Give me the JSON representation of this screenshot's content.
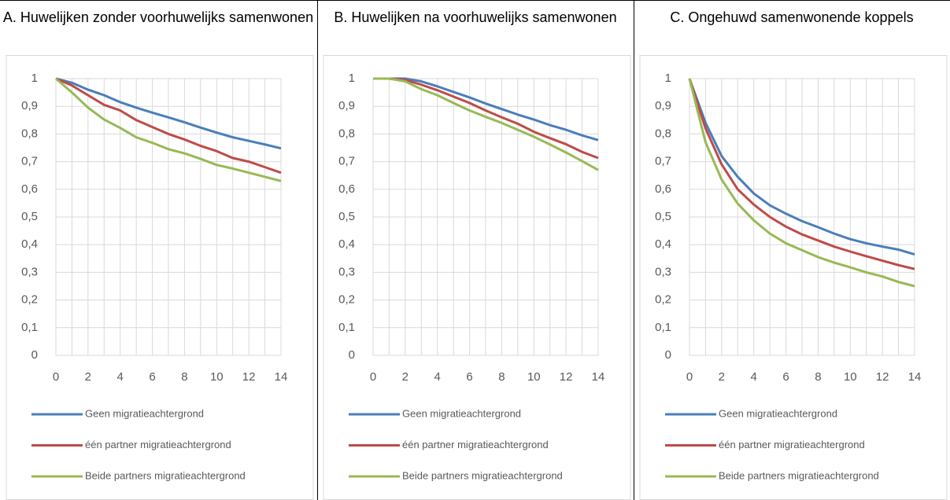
{
  "chart_data": [
    {
      "type": "line",
      "title": "A. Huwelijken zonder voorhuwelijks samenwonen",
      "categories": [
        "0",
        null,
        "2",
        null,
        "4",
        null,
        "6",
        null,
        "8",
        null,
        "10",
        null,
        "12",
        null,
        "14"
      ],
      "ylim": [
        0,
        1
      ],
      "yticks": [
        0,
        {
          "value": 0.1,
          "label": "0,1"
        },
        {
          "value": 0.2,
          "label": "0,2"
        },
        {
          "value": 0.3,
          "label": "0,3"
        },
        {
          "value": 0.4,
          "label": "0,4"
        },
        {
          "value": 0.5,
          "label": "0,5"
        },
        {
          "value": 0.6,
          "label": "0,6"
        },
        {
          "value": 0.7,
          "label": "0,7"
        },
        {
          "value": 0.8,
          "label": "0,8"
        },
        {
          "value": 0.9,
          "label": "0,9"
        },
        1
      ],
      "grid": true,
      "series": [
        {
          "name": "Geen migratieachtergrond",
          "color": "#4a7ebb",
          "values": [
            1,
            0.985,
            0.96,
            0.94,
            0.915,
            0.895,
            0.877,
            0.86,
            0.842,
            0.823,
            0.805,
            0.788,
            0.775,
            0.762,
            0.748
          ]
        },
        {
          "name": "één partner migratieachtergrond",
          "color": "#be4b48",
          "values": [
            1,
            0.975,
            0.94,
            0.905,
            0.885,
            0.85,
            0.825,
            0.8,
            0.78,
            0.757,
            0.738,
            0.713,
            0.7,
            0.68,
            0.66
          ]
        },
        {
          "name": "Beide partners migratieachtergrond",
          "color": "#98b954",
          "values": [
            1,
            0.95,
            0.895,
            0.852,
            0.822,
            0.788,
            0.768,
            0.745,
            0.73,
            0.71,
            0.688,
            0.675,
            0.66,
            0.645,
            0.63
          ]
        }
      ]
    },
    {
      "type": "line",
      "title": "B. Huwelijken na voorhuwelijks samenwonen",
      "categories": [
        "0",
        null,
        "2",
        null,
        "4",
        null,
        "6",
        null,
        "8",
        null,
        "10",
        null,
        "12",
        null,
        "14"
      ],
      "ylim": [
        0,
        1
      ],
      "yticks": [
        0,
        {
          "value": 0.1,
          "label": "0,1"
        },
        {
          "value": 0.2,
          "label": "0,2"
        },
        {
          "value": 0.3,
          "label": "0,3"
        },
        {
          "value": 0.4,
          "label": "0,4"
        },
        {
          "value": 0.5,
          "label": "0,5"
        },
        {
          "value": 0.6,
          "label": "0,6"
        },
        {
          "value": 0.7,
          "label": "0,7"
        },
        {
          "value": 0.8,
          "label": "0,8"
        },
        {
          "value": 0.9,
          "label": "0,9"
        },
        1
      ],
      "grid": true,
      "series": [
        {
          "name": "Geen migratieachtergrond",
          "color": "#4a7ebb",
          "values": [
            1,
            1,
            1,
            0.99,
            0.972,
            0.952,
            0.932,
            0.91,
            0.89,
            0.87,
            0.852,
            0.832,
            0.815,
            0.795,
            0.778
          ]
        },
        {
          "name": "één partner migratieachtergrond",
          "color": "#be4b48",
          "values": [
            1,
            1,
            0.995,
            0.978,
            0.958,
            0.935,
            0.912,
            0.885,
            0.86,
            0.837,
            0.808,
            0.785,
            0.763,
            0.735,
            0.713
          ]
        },
        {
          "name": "Beide partners migratieachtergrond",
          "color": "#98b954",
          "values": [
            1,
            1,
            0.99,
            0.962,
            0.94,
            0.912,
            0.885,
            0.862,
            0.84,
            0.815,
            0.79,
            0.762,
            0.733,
            0.702,
            0.67
          ]
        }
      ]
    },
    {
      "type": "line",
      "title": "C. Ongehuwd samenwonende koppels",
      "categories": [
        "0",
        null,
        "2",
        null,
        "4",
        null,
        "6",
        null,
        "8",
        null,
        "10",
        null,
        "12",
        null,
        "14"
      ],
      "ylim": [
        0,
        1
      ],
      "yticks": [
        0,
        {
          "value": 0.1,
          "label": "0,1"
        },
        {
          "value": 0.2,
          "label": "0,2"
        },
        {
          "value": 0.3,
          "label": "0,3"
        },
        {
          "value": 0.4,
          "label": "0,4"
        },
        {
          "value": 0.5,
          "label": "0,5"
        },
        {
          "value": 0.6,
          "label": "0,6"
        },
        {
          "value": 0.7,
          "label": "0,7"
        },
        {
          "value": 0.8,
          "label": "0,8"
        },
        {
          "value": 0.9,
          "label": "0,9"
        },
        1
      ],
      "grid": true,
      "series": [
        {
          "name": "Geen migratieachtergrond",
          "color": "#4a7ebb",
          "values": [
            1,
            0.84,
            0.72,
            0.645,
            0.585,
            0.542,
            0.512,
            0.485,
            0.463,
            0.44,
            0.42,
            0.405,
            0.393,
            0.382,
            0.365
          ]
        },
        {
          "name": "één partner migratieachtergrond",
          "color": "#be4b48",
          "values": [
            1,
            0.82,
            0.69,
            0.6,
            0.545,
            0.5,
            0.465,
            0.437,
            0.415,
            0.393,
            0.375,
            0.358,
            0.342,
            0.326,
            0.312
          ]
        },
        {
          "name": "Beide partners migratieachtergrond",
          "color": "#98b954",
          "values": [
            1,
            0.77,
            0.635,
            0.548,
            0.488,
            0.44,
            0.405,
            0.38,
            0.355,
            0.335,
            0.318,
            0.3,
            0.285,
            0.265,
            0.25
          ]
        }
      ]
    }
  ]
}
